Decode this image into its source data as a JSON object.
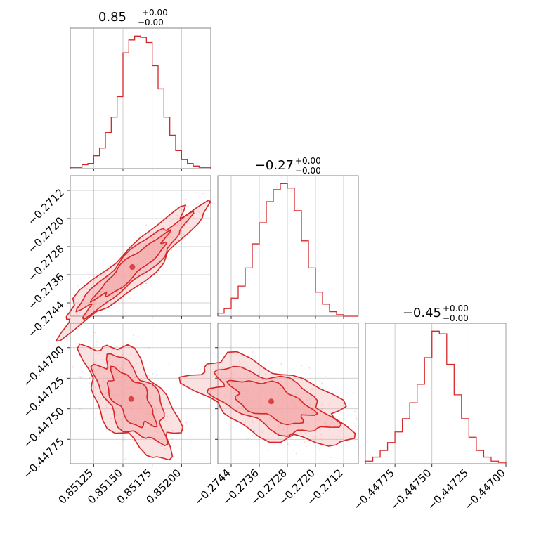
{
  "chart_data": [
    {
      "type": "histogram",
      "panel": "p0_hist",
      "title": "0.85",
      "title_sup": "+0.00",
      "title_sub": "−0.00",
      "xlim": [
        0.85105,
        0.85225
      ],
      "xticks": [
        0.85125,
        0.8515,
        0.85175,
        0.852
      ],
      "series": [
        {
          "bin_edges": [
            0.85105,
            0.8511,
            0.85115,
            0.8512,
            0.85125,
            0.8513,
            0.85135,
            0.8514,
            0.85145,
            0.8515,
            0.85155,
            0.8516,
            0.85165,
            0.8517,
            0.85175,
            0.8518,
            0.85185,
            0.8519,
            0.85195,
            0.852,
            0.85205,
            0.8521,
            0.85215,
            0.8522,
            0.85225
          ],
          "counts": [
            1,
            1,
            3,
            4,
            10,
            16,
            28,
            40,
            56,
            90,
            100,
            103,
            102,
            98,
            80,
            62,
            40,
            26,
            14,
            7,
            4,
            2,
            1,
            1
          ]
        }
      ]
    },
    {
      "type": "histogram",
      "panel": "p1_hist",
      "title": "−0.27",
      "title_sup": "+0.00",
      "title_sub": "−0.00",
      "xlim": [
        -0.27478,
        -0.27078
      ],
      "xticks": [
        -0.2744,
        -0.2736,
        -0.2728,
        -0.272,
        -0.2712
      ],
      "series": [
        {
          "bin_edges": [
            -0.27478,
            -0.2746,
            -0.2744,
            -0.2742,
            -0.274,
            -0.2738,
            -0.2736,
            -0.2734,
            -0.2732,
            -0.273,
            -0.2728,
            -0.2726,
            -0.2724,
            -0.2722,
            -0.272,
            -0.2718,
            -0.2716,
            -0.2714,
            -0.2712,
            -0.27078
          ],
          "counts": [
            2,
            5,
            12,
            20,
            32,
            48,
            62,
            76,
            84,
            88,
            85,
            70,
            50,
            32,
            16,
            8,
            3,
            1,
            0
          ]
        }
      ]
    },
    {
      "type": "histogram",
      "panel": "p2_hist",
      "title": "−0.45",
      "title_sup": "+0.00",
      "title_sub": "−0.00",
      "xlim": [
        -0.44795,
        -0.447
      ],
      "xticks": [
        -0.44775,
        -0.4475,
        -0.44725,
        -0.447
      ],
      "series": [
        {
          "bin_edges": [
            -0.44795,
            -0.4479,
            -0.44785,
            -0.4478,
            -0.44775,
            -0.4477,
            -0.44765,
            -0.4476,
            -0.44755,
            -0.4475,
            -0.44745,
            -0.4474,
            -0.44735,
            -0.4473,
            -0.44725,
            -0.4472,
            -0.44715,
            -0.4471,
            -0.44705,
            -0.447
          ],
          "counts": [
            2,
            5,
            10,
            16,
            24,
            34,
            46,
            60,
            80,
            100,
            98,
            75,
            52,
            34,
            20,
            10,
            5,
            2,
            1
          ]
        }
      ]
    },
    {
      "type": "contour",
      "panel": "p10_2d",
      "xlim": [
        0.85105,
        0.85225
      ],
      "ylim": [
        -0.27478,
        -0.27078
      ],
      "xticks": [
        0.85125,
        0.8515,
        0.85175,
        0.852
      ],
      "yticks": [
        -0.2744,
        -0.2736,
        -0.2728,
        -0.272,
        -0.2712
      ],
      "ytick_labels": [
        "−0.2744",
        "−0.2736",
        "−0.2728",
        "−0.2720",
        "−0.2712"
      ],
      "center": [
        0.85158,
        -0.27338
      ],
      "axis_direction": [
        0.00054,
        0.00158
      ],
      "sd_along": 0.55,
      "sd_across": 0.1,
      "contour_levels": [
        1.0,
        1.5,
        2.0
      ]
    },
    {
      "type": "contour",
      "panel": "p20_2d",
      "xlim": [
        0.85105,
        0.85225
      ],
      "ylim": [
        -0.44795,
        -0.4468
      ],
      "xticks": [
        0.85125,
        0.8515,
        0.85175,
        0.852
      ],
      "yticks": [
        -0.447,
        -0.44725,
        -0.4475,
        -0.44775
      ],
      "ytick_labels": [
        "−0.44700",
        "−0.44725",
        "−0.44750",
        "−0.44775"
      ],
      "xtick_labels": [
        "0.85125",
        "0.85150",
        "0.85175",
        "0.85200"
      ],
      "center": [
        0.85157,
        -0.44742
      ],
      "axis_direction": [
        0.00012,
        -0.00016
      ],
      "sd_along": 1.35,
      "sd_across": 0.65,
      "contour_levels": [
        1.0,
        1.5,
        2.0
      ]
    },
    {
      "type": "contour",
      "panel": "p21_2d",
      "xlim": [
        -0.27478,
        -0.27078
      ],
      "ylim": [
        -0.44795,
        -0.4468
      ],
      "xticks": [
        -0.2744,
        -0.2736,
        -0.2728,
        -0.272,
        -0.2712
      ],
      "yticks": [
        -0.447,
        -0.44725,
        -0.4475,
        -0.44775
      ],
      "xtick_labels": [
        "−0.2744",
        "−0.2736",
        "−0.2728",
        "−0.2720",
        "−0.2712"
      ],
      "center": [
        -0.27326,
        -0.44744
      ],
      "axis_direction": [
        0.00146,
        -0.00016
      ],
      "sd_along": 0.75,
      "sd_across": 0.3,
      "contour_levels": [
        1.0,
        1.5,
        2.0
      ]
    }
  ],
  "style": {
    "series_color": "#d62728",
    "fill_color": "#f4a6a6",
    "grid_color": "#b0b0b0"
  }
}
